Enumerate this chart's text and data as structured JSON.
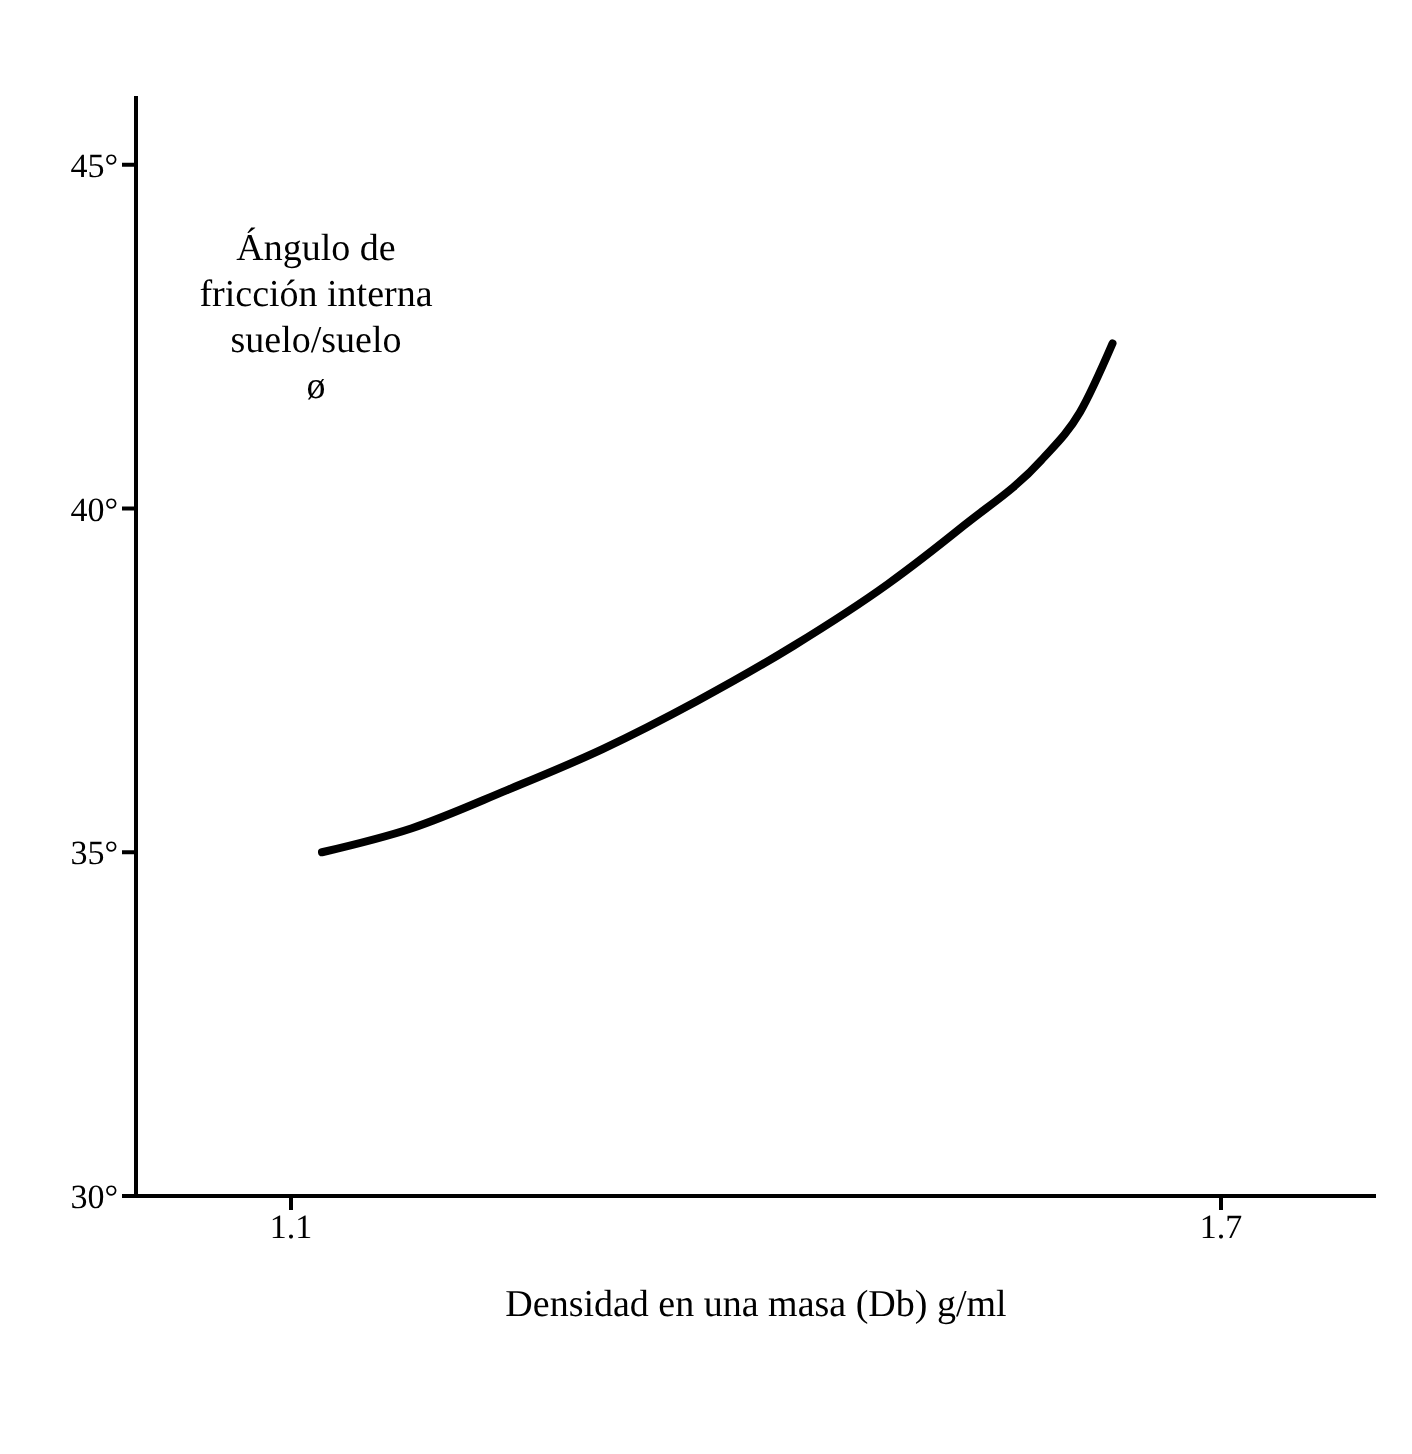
{
  "chart_data": {
    "type": "line",
    "xlabel": "Densidad en una masa (Db) g/ml",
    "ylabel": "Ángulo de\nfricción interna\nsuelo/suelo\nø",
    "x": [
      1.12,
      1.178,
      1.239,
      1.301,
      1.362,
      1.424,
      1.485,
      1.534,
      1.584,
      1.609,
      1.63
    ],
    "series": [
      {
        "color": "#000000",
        "values": [
          35.0,
          35.35,
          35.9,
          36.5,
          37.2,
          38.0,
          38.9,
          39.75,
          40.7,
          41.4,
          42.4
        ]
      }
    ],
    "xlim": [
      1.0,
      1.8
    ],
    "xticks": [
      1.1,
      1.7
    ],
    "ylim": [
      30,
      46
    ],
    "yticks": [
      {
        "value": 30,
        "label": "30°"
      },
      {
        "value": 35,
        "label": "35°"
      },
      {
        "value": 40,
        "label": "40°"
      },
      {
        "value": 45,
        "label": "45°"
      }
    ],
    "grid": false,
    "legend": false,
    "marker": "none",
    "line_style": "solid"
  }
}
